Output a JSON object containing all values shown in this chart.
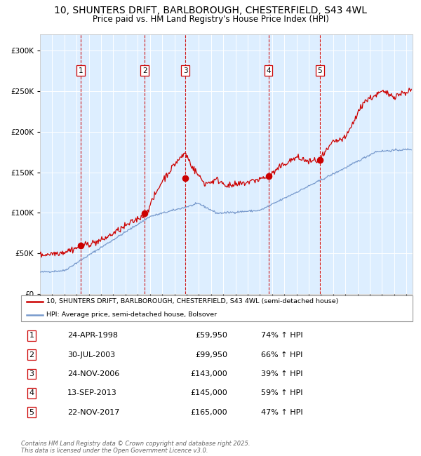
{
  "title_line1": "10, SHUNTERS DRIFT, BARLBOROUGH, CHESTERFIELD, S43 4WL",
  "title_line2": "Price paid vs. HM Land Registry's House Price Index (HPI)",
  "red_label": "10, SHUNTERS DRIFT, BARLBOROUGH, CHESTERFIELD, S43 4WL (semi-detached house)",
  "blue_label": "HPI: Average price, semi-detached house, Bolsover",
  "footer": "Contains HM Land Registry data © Crown copyright and database right 2025.\nThis data is licensed under the Open Government Licence v3.0.",
  "sale_points": [
    {
      "num": 1,
      "date": "24-APR-1998",
      "price": 59950,
      "hpi_pct": "74% ↑ HPI",
      "year_x": 1998.31
    },
    {
      "num": 2,
      "date": "30-JUL-2003",
      "price": 99950,
      "hpi_pct": "66% ↑ HPI",
      "year_x": 2003.58
    },
    {
      "num": 3,
      "date": "24-NOV-2006",
      "price": 143000,
      "hpi_pct": "39% ↑ HPI",
      "year_x": 2006.9
    },
    {
      "num": 4,
      "date": "13-SEP-2013",
      "price": 145000,
      "hpi_pct": "59% ↑ HPI",
      "year_x": 2013.7
    },
    {
      "num": 5,
      "date": "22-NOV-2017",
      "price": 165000,
      "hpi_pct": "47% ↑ HPI",
      "year_x": 2017.9
    }
  ],
  "red_color": "#cc0000",
  "blue_color": "#7799cc",
  "bg_color": "#ddeeff",
  "grid_color": "#ffffff",
  "dashed_color": "#cc0000",
  "ylim": [
    0,
    320000
  ],
  "yticks": [
    0,
    50000,
    100000,
    150000,
    200000,
    250000,
    300000
  ],
  "xlim_start": 1995.0,
  "xlim_end": 2025.5,
  "title_fontsize": 10,
  "subtitle_fontsize": 9
}
